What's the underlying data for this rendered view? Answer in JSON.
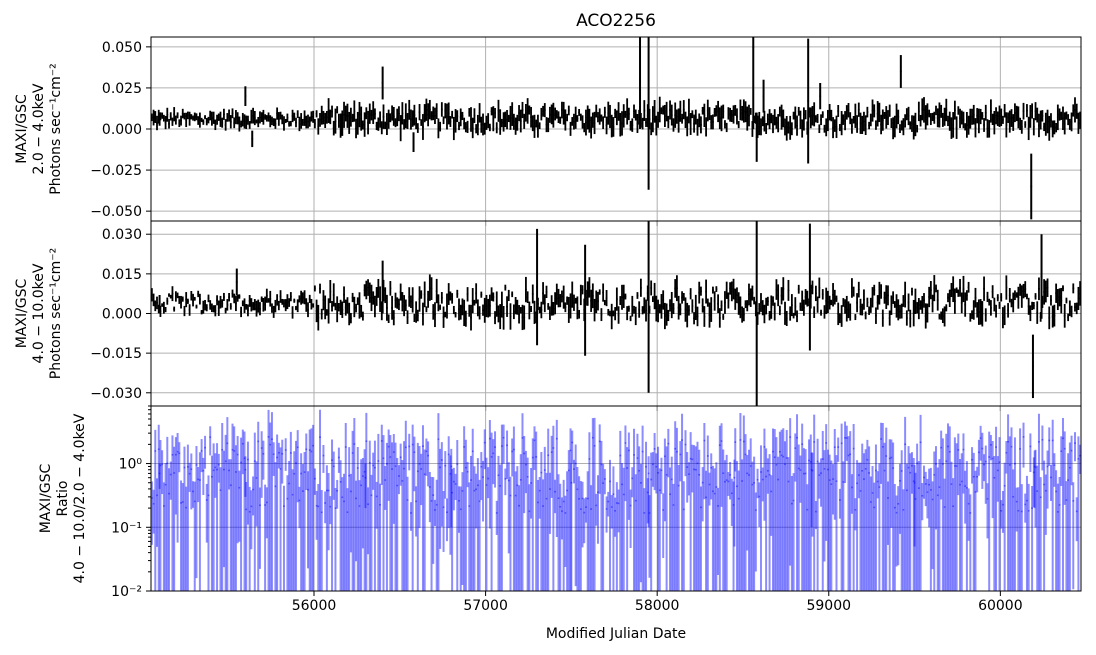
{
  "chart_data": {
    "type": "line",
    "title": "ACO2256",
    "xlabel": "Modified Julian Date",
    "xlim": [
      55050,
      60470
    ],
    "xticks": [
      56000,
      57000,
      58000,
      59000,
      60000
    ],
    "grid": true,
    "legend": "none",
    "colors": {
      "data": "#000000",
      "ratio": "#0000ff",
      "grid": "#b0b0b0"
    },
    "panels": [
      {
        "id": "soft",
        "ylabel_lines": [
          "MAXI/GSC",
          "2.0 − 4.0keV",
          "Photons sec⁻¹cm⁻²"
        ],
        "yscale": "linear",
        "ylim": [
          -0.056,
          0.056
        ],
        "yticks": [
          -0.05,
          -0.025,
          0.0,
          0.025,
          0.05
        ],
        "ytick_labels": [
          "−0.050",
          "−0.025",
          "0.000",
          "0.025",
          "0.050"
        ],
        "series": {
          "x": [
            55100,
            55600,
            55640,
            56400,
            56580,
            57900,
            57950,
            58560,
            58580,
            58620,
            58880,
            58950,
            59420,
            60180
          ],
          "y": [
            0.006,
            0.02,
            -0.006,
            0.028,
            -0.008,
            0.03,
            0.01,
            0.05,
            -0.005,
            0.02,
            0.017,
            0.02,
            0.035,
            -0.035
          ],
          "yerr": [
            0.004,
            0.006,
            0.005,
            0.01,
            0.006,
            0.03,
            0.047,
            0.05,
            0.015,
            0.01,
            0.038,
            0.008,
            0.01,
            0.02
          ]
        }
      },
      {
        "id": "hard",
        "ylabel_lines": [
          "MAXI/GSC",
          "4.0 − 10.0keV",
          "Photons sec⁻¹cm⁻²"
        ],
        "yscale": "linear",
        "ylim": [
          -0.035,
          0.035
        ],
        "yticks": [
          -0.03,
          -0.015,
          0.0,
          0.015,
          0.03
        ],
        "ytick_labels": [
          "−0.030",
          "−0.015",
          "0.000",
          "0.015",
          "0.030"
        ],
        "series": {
          "x": [
            55100,
            55550,
            56400,
            57300,
            57580,
            57950,
            58580,
            58890,
            60190,
            60240
          ],
          "y": [
            0.004,
            0.012,
            0.01,
            0.01,
            0.005,
            0.01,
            0.0,
            0.01,
            -0.02,
            0.014
          ],
          "yerr": [
            0.003,
            0.005,
            0.01,
            0.022,
            0.021,
            0.04,
            0.038,
            0.024,
            0.012,
            0.016
          ]
        }
      },
      {
        "id": "ratio",
        "ylabel_lines": [
          "MAXI/GSC",
          "Ratio",
          "4.0 − 10.0/2.0 − 4.0keV"
        ],
        "yscale": "log",
        "ylim": [
          0.01,
          8
        ],
        "yticks": [
          0.01,
          0.1,
          1
        ],
        "ytick_labels": [
          "10⁻²",
          "10⁻¹",
          "10⁰"
        ],
        "series": {
          "x": [
            55100,
            55600,
            56300,
            56800,
            57500,
            57950,
            58450,
            58900,
            59500,
            60200
          ],
          "y": [
            0.7,
            0.8,
            0.6,
            0.9,
            0.5,
            0.7,
            0.6,
            0.8,
            0.5,
            0.9
          ],
          "yerr": [
            0.3,
            0.5,
            0.4,
            0.8,
            0.5,
            0.6,
            0.55,
            0.7,
            0.45,
            0.7
          ]
        }
      }
    ]
  }
}
